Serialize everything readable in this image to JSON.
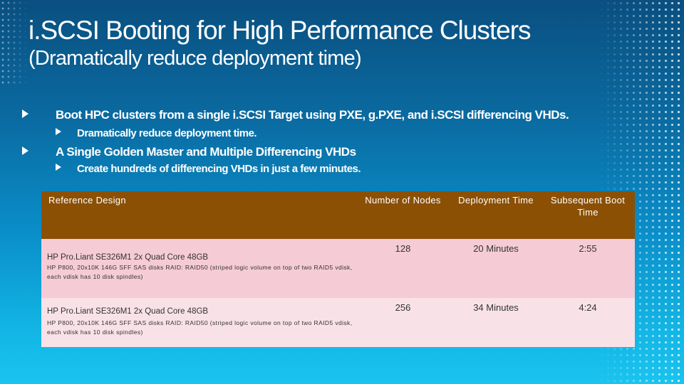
{
  "slide": {
    "title": "i.SCSI Booting for High Performance Clusters",
    "subtitle": "(Dramatically reduce deployment time)"
  },
  "bullets": [
    {
      "text": "Boot HPC clusters from a single i.SCSI Target using PXE, g.PXE, and i.SCSI differencing VHDs."
    },
    {
      "text": "Dramatically reduce deployment time."
    },
    {
      "text": "A Single Golden Master and Multiple Differencing VHDs"
    },
    {
      "text": "Create hundreds of differencing VHDs in just a few minutes."
    }
  ],
  "table": {
    "headers": [
      "Reference Design",
      "Number of Nodes",
      "Deployment Time",
      "Subsequent Boot Time"
    ],
    "rows": [
      {
        "design_line1": "HP Pro.Liant SE326M1 2x Quad Core 48GB",
        "design_line2": "HP P800, 20x10K 146G SFF SAS disks RAID: RAID50 (striped logic volume on top of two RAID5 vdisk, each vdisk has 10 disk spindles)",
        "nodes": "128",
        "deployment": "20 Minutes",
        "boot": "2:55"
      },
      {
        "design_line1": "HP Pro.Liant SE326M1 2x Quad Core 48GB",
        "design_line2": "HP P800, 20x10K 146G SFF SAS disks RAID: RAID50 (striped logic volume on top of two RAID5 vdisk, each vdisk has 10 disk spindles)",
        "nodes": "256",
        "deployment": "34 Minutes",
        "boot": "4:24"
      }
    ]
  },
  "colors": {
    "header_bg": "#8b5004",
    "row1_bg": "#f5cbd5",
    "row2_bg": "#f9e2e7",
    "bg_top": "#0a4f80",
    "bg_bottom": "#1ac4ef"
  }
}
